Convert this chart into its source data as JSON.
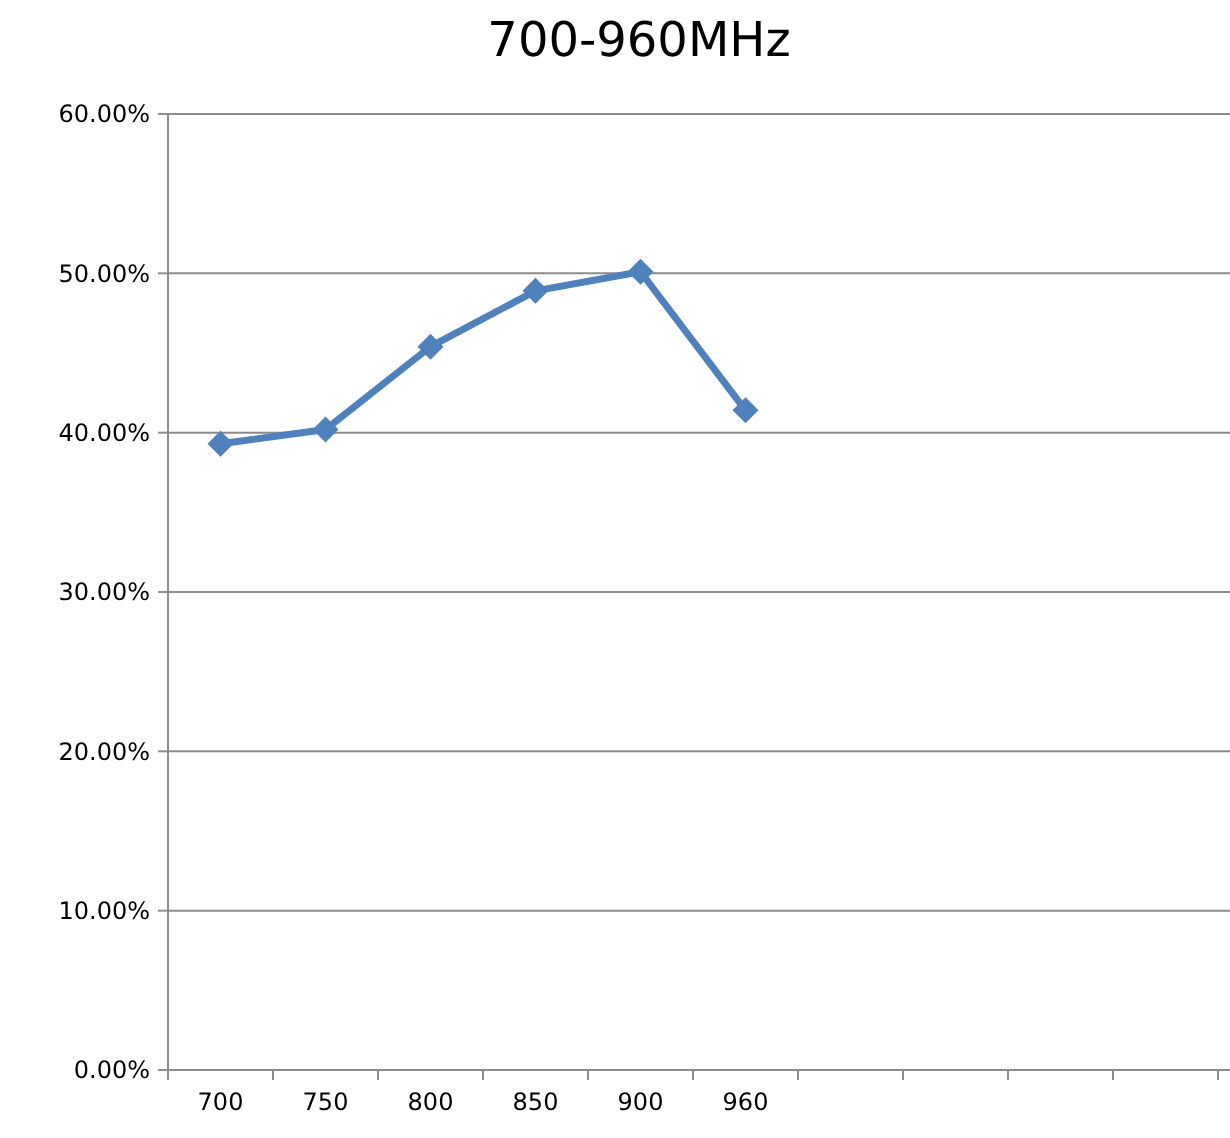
{
  "chart_data": {
    "type": "line",
    "title": "700-960MHz",
    "categories": [
      "700",
      "750",
      "800",
      "850",
      "900",
      "960",
      null,
      null,
      null,
      null
    ],
    "series": [
      {
        "color": "#4f81bd",
        "values": [
          39.3,
          40.2,
          45.4,
          48.9,
          50.1,
          41.4,
          null,
          null,
          null,
          null
        ]
      }
    ],
    "ylim": [
      0,
      60
    ],
    "yticks": [
      {
        "value": 0,
        "label": "0.00%"
      },
      {
        "value": 10,
        "label": "10.00%"
      },
      {
        "value": 20,
        "label": "20.00%"
      },
      {
        "value": 30,
        "label": "30.00%"
      },
      {
        "value": 40,
        "label": "40.00%"
      },
      {
        "value": 50,
        "label": "50.00%"
      },
      {
        "value": 60,
        "label": "60.00%"
      }
    ],
    "grid": "y",
    "marker": "diamond",
    "line_style": "solid"
  }
}
